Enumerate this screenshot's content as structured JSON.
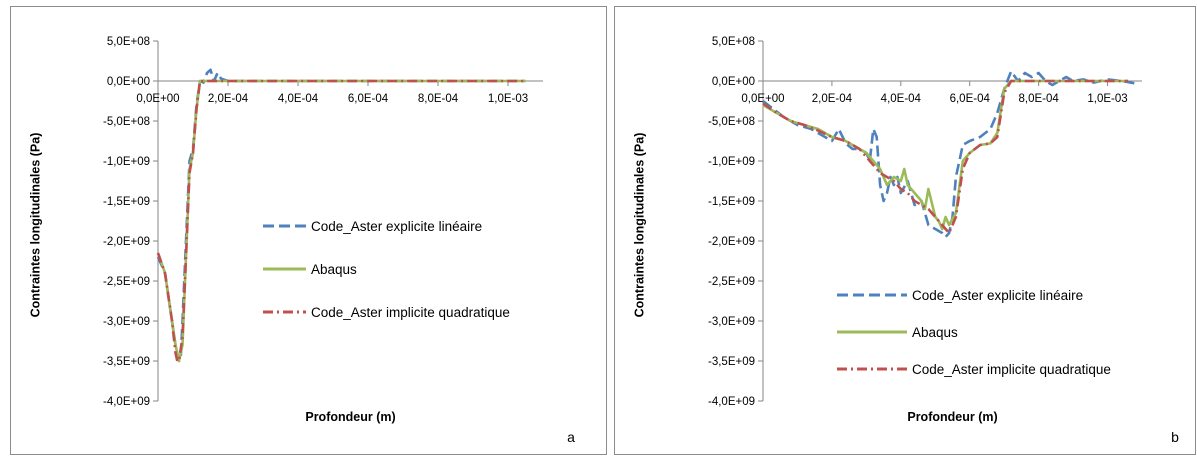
{
  "chart_data": [
    {
      "type": "line",
      "panel_label": "a",
      "xlabel": "Profondeur (m)",
      "ylabel": "Contraintes longitudinales (Pa)",
      "ylim": [
        -4000000000,
        500000000
      ],
      "xlim": [
        0,
        0.0011
      ],
      "y_ticks": [
        500000000,
        0,
        -500000000,
        -1000000000,
        -1500000000,
        -2000000000,
        -2500000000,
        -3000000000,
        -3500000000,
        -4000000000
      ],
      "y_tick_labels": [
        "5,0E+08",
        "0,0E+00",
        "-5,0E+08",
        "-1,0E+09",
        "-1,5E+09",
        "-2,0E+09",
        "-2,5E+09",
        "-3,0E+09",
        "-3,5E+09",
        "-4,0E+09"
      ],
      "x_ticks": [
        0,
        0.0002,
        0.0004,
        0.0006,
        0.0008,
        0.001
      ],
      "x_tick_labels": [
        "0,0E+00",
        "2,0E-04",
        "4,0E-04",
        "6,0E-04",
        "8,0E-04",
        "1,0E-03"
      ],
      "legend_position": "right",
      "series": [
        {
          "name": "Code_Aster explicite linéaire",
          "color": "#4f81bd",
          "dash": "dash",
          "x": [
            0,
            2e-05,
            4e-05,
            5e-05,
            6e-05,
            6.5e-05,
            7e-05,
            8e-05,
            9e-05,
            0.0001,
            0.00011,
            0.00012,
            0.00013,
            0.00014,
            0.00015,
            0.00016,
            0.00017,
            0.00018,
            0.0002,
            0.0003,
            0.0005,
            0.0007,
            0.0009,
            0.00105
          ],
          "y": [
            -2200000000,
            -2400000000,
            -3000000000,
            -3300000000,
            -3500000000,
            -3450000000,
            -3000000000,
            -2000000000,
            -1000000000,
            -850000000,
            -300000000,
            0,
            -20000000,
            100000000,
            140000000,
            0,
            100000000,
            30000000,
            0,
            0,
            0,
            0,
            0,
            0
          ]
        },
        {
          "name": "Abaqus",
          "color": "#9bbb59",
          "dash": "solid",
          "x": [
            0,
            2e-05,
            4e-05,
            5e-05,
            6e-05,
            7e-05,
            8e-05,
            9e-05,
            0.0001,
            0.00011,
            0.00012,
            0.00014,
            0.00016,
            0.0002,
            0.0004,
            0.0006,
            0.0008,
            0.00105
          ],
          "y": [
            -2150000000,
            -2400000000,
            -3000000000,
            -3300000000,
            -3500000000,
            -3300000000,
            -2200000000,
            -1100000000,
            -900000000,
            -350000000,
            0,
            0,
            0,
            0,
            0,
            0,
            0,
            0
          ]
        },
        {
          "name": "Code_Aster implicite quadratique",
          "color": "#c0504d",
          "dash": "dashdot",
          "x": [
            0,
            2e-05,
            4e-05,
            5e-05,
            5.5e-05,
            6e-05,
            7e-05,
            8e-05,
            9e-05,
            0.0001,
            0.00011,
            0.00012,
            0.00014,
            0.00016,
            0.0002,
            0.0004,
            0.0006,
            0.0008,
            0.00105
          ],
          "y": [
            -2150000000,
            -2400000000,
            -3000000000,
            -3400000000,
            -3500000000,
            -3500000000,
            -3200000000,
            -2200000000,
            -1150000000,
            -900000000,
            -350000000,
            0,
            0,
            0,
            0,
            0,
            0,
            0,
            0
          ]
        }
      ]
    },
    {
      "type": "line",
      "panel_label": "b",
      "xlabel": "Profondeur (m)",
      "ylabel": "Contraintes longitudinales (Pa)",
      "ylim": [
        -4000000000,
        500000000
      ],
      "xlim": [
        0,
        0.0011
      ],
      "y_ticks": [
        500000000,
        0,
        -500000000,
        -1000000000,
        -1500000000,
        -2000000000,
        -2500000000,
        -3000000000,
        -3500000000,
        -4000000000
      ],
      "y_tick_labels": [
        "5,0E+08",
        "0,0E+00",
        "-5,0E+08",
        "-1,0E+09",
        "-1,5E+09",
        "-2,0E+09",
        "-2,5E+09",
        "-3,0E+09",
        "-3,5E+09",
        "-4,0E+09"
      ],
      "x_ticks": [
        0,
        0.0002,
        0.0004,
        0.0006,
        0.0008,
        0.001
      ],
      "x_tick_labels": [
        "0,0E+00",
        "2,0E-04",
        "4,0E-04",
        "6,0E-04",
        "8,0E-04",
        "1,0E-03"
      ],
      "legend_position": "bottom-right",
      "series": [
        {
          "name": "Code_Aster explicite linéaire",
          "color": "#4f81bd",
          "dash": "dash",
          "x": [
            0,
            3e-05,
            6e-05,
            0.0001,
            0.00014,
            0.00018,
            0.0002,
            0.00022,
            0.00024,
            0.00026,
            0.00028,
            0.0003,
            0.00031,
            0.00032,
            0.00033,
            0.00034,
            0.00035,
            0.00036,
            0.00037,
            0.00038,
            0.00039,
            0.0004,
            0.00042,
            0.00044,
            0.00046,
            0.00048,
            0.0005,
            0.00052,
            0.00053,
            0.00054,
            0.00055,
            0.00056,
            0.00058,
            0.0006,
            0.00063,
            0.00066,
            0.00068,
            0.0007,
            0.00072,
            0.00074,
            0.00076,
            0.00078,
            0.0008,
            0.00082,
            0.00084,
            0.00086,
            0.00088,
            0.0009,
            0.00093,
            0.00096,
            0.001,
            0.00104,
            0.00108
          ],
          "y": [
            -250000000,
            -350000000,
            -450000000,
            -550000000,
            -600000000,
            -700000000,
            -750000000,
            -600000000,
            -780000000,
            -850000000,
            -850000000,
            -900000000,
            -1000000000,
            -600000000,
            -700000000,
            -1300000000,
            -1500000000,
            -1400000000,
            -1200000000,
            -1300000000,
            -1200000000,
            -1400000000,
            -1250000000,
            -1550000000,
            -1500000000,
            -1800000000,
            -1850000000,
            -1900000000,
            -1950000000,
            -1900000000,
            -1700000000,
            -1200000000,
            -800000000,
            -750000000,
            -700000000,
            -600000000,
            -400000000,
            -100000000,
            120000000,
            0,
            100000000,
            50000000,
            100000000,
            0,
            -50000000,
            0,
            50000000,
            0,
            20000000,
            -20000000,
            20000000,
            0,
            -30000000
          ]
        },
        {
          "name": "Abaqus",
          "color": "#9bbb59",
          "dash": "solid",
          "x": [
            0,
            4e-05,
            8e-05,
            0.00012,
            0.00016,
            0.0002,
            0.00024,
            0.00028,
            0.0003,
            0.00032,
            0.00034,
            0.00036,
            0.00038,
            0.0004,
            0.00041,
            0.00042,
            0.00044,
            0.00046,
            0.00047,
            0.00048,
            0.0005,
            0.00051,
            0.00052,
            0.00053,
            0.00054,
            0.00056,
            0.00058,
            0.0006,
            0.00063,
            0.00066,
            0.00068,
            0.0007,
            0.00072,
            0.00074,
            0.00078,
            0.0008,
            0.0009,
            0.001,
            0.00106
          ],
          "y": [
            -300000000,
            -400000000,
            -500000000,
            -550000000,
            -600000000,
            -700000000,
            -750000000,
            -850000000,
            -900000000,
            -1000000000,
            -1100000000,
            -1300000000,
            -1200000000,
            -1250000000,
            -1100000000,
            -1300000000,
            -1400000000,
            -1500000000,
            -1600000000,
            -1350000000,
            -1700000000,
            -1750000000,
            -1850000000,
            -1700000000,
            -1800000000,
            -1650000000,
            -1000000000,
            -900000000,
            -800000000,
            -780000000,
            -650000000,
            -100000000,
            0,
            0,
            0,
            0,
            0,
            0,
            0
          ]
        },
        {
          "name": "Code_Aster implicite quadratique",
          "color": "#c0504d",
          "dash": "dashdot",
          "x": [
            0,
            4e-05,
            8e-05,
            0.00012,
            0.00016,
            0.0002,
            0.00024,
            0.00028,
            0.0003,
            0.00032,
            0.00034,
            0.00036,
            0.00038,
            0.0004,
            0.00042,
            0.00044,
            0.00046,
            0.00048,
            0.0005,
            0.00052,
            0.00053,
            0.00054,
            0.00055,
            0.00056,
            0.00058,
            0.0006,
            0.00063,
            0.00066,
            0.00068,
            0.0007,
            0.00072,
            0.00074,
            0.00078,
            0.0008,
            0.0009,
            0.001,
            0.00106
          ],
          "y": [
            -280000000,
            -400000000,
            -500000000,
            -550000000,
            -620000000,
            -700000000,
            -750000000,
            -850000000,
            -950000000,
            -1050000000,
            -1150000000,
            -1200000000,
            -1250000000,
            -1350000000,
            -1400000000,
            -1500000000,
            -1550000000,
            -1600000000,
            -1700000000,
            -1800000000,
            -1850000000,
            -1900000000,
            -1800000000,
            -1700000000,
            -1100000000,
            -900000000,
            -800000000,
            -780000000,
            -700000000,
            -150000000,
            0,
            0,
            0,
            0,
            0,
            0,
            0
          ]
        }
      ]
    }
  ]
}
